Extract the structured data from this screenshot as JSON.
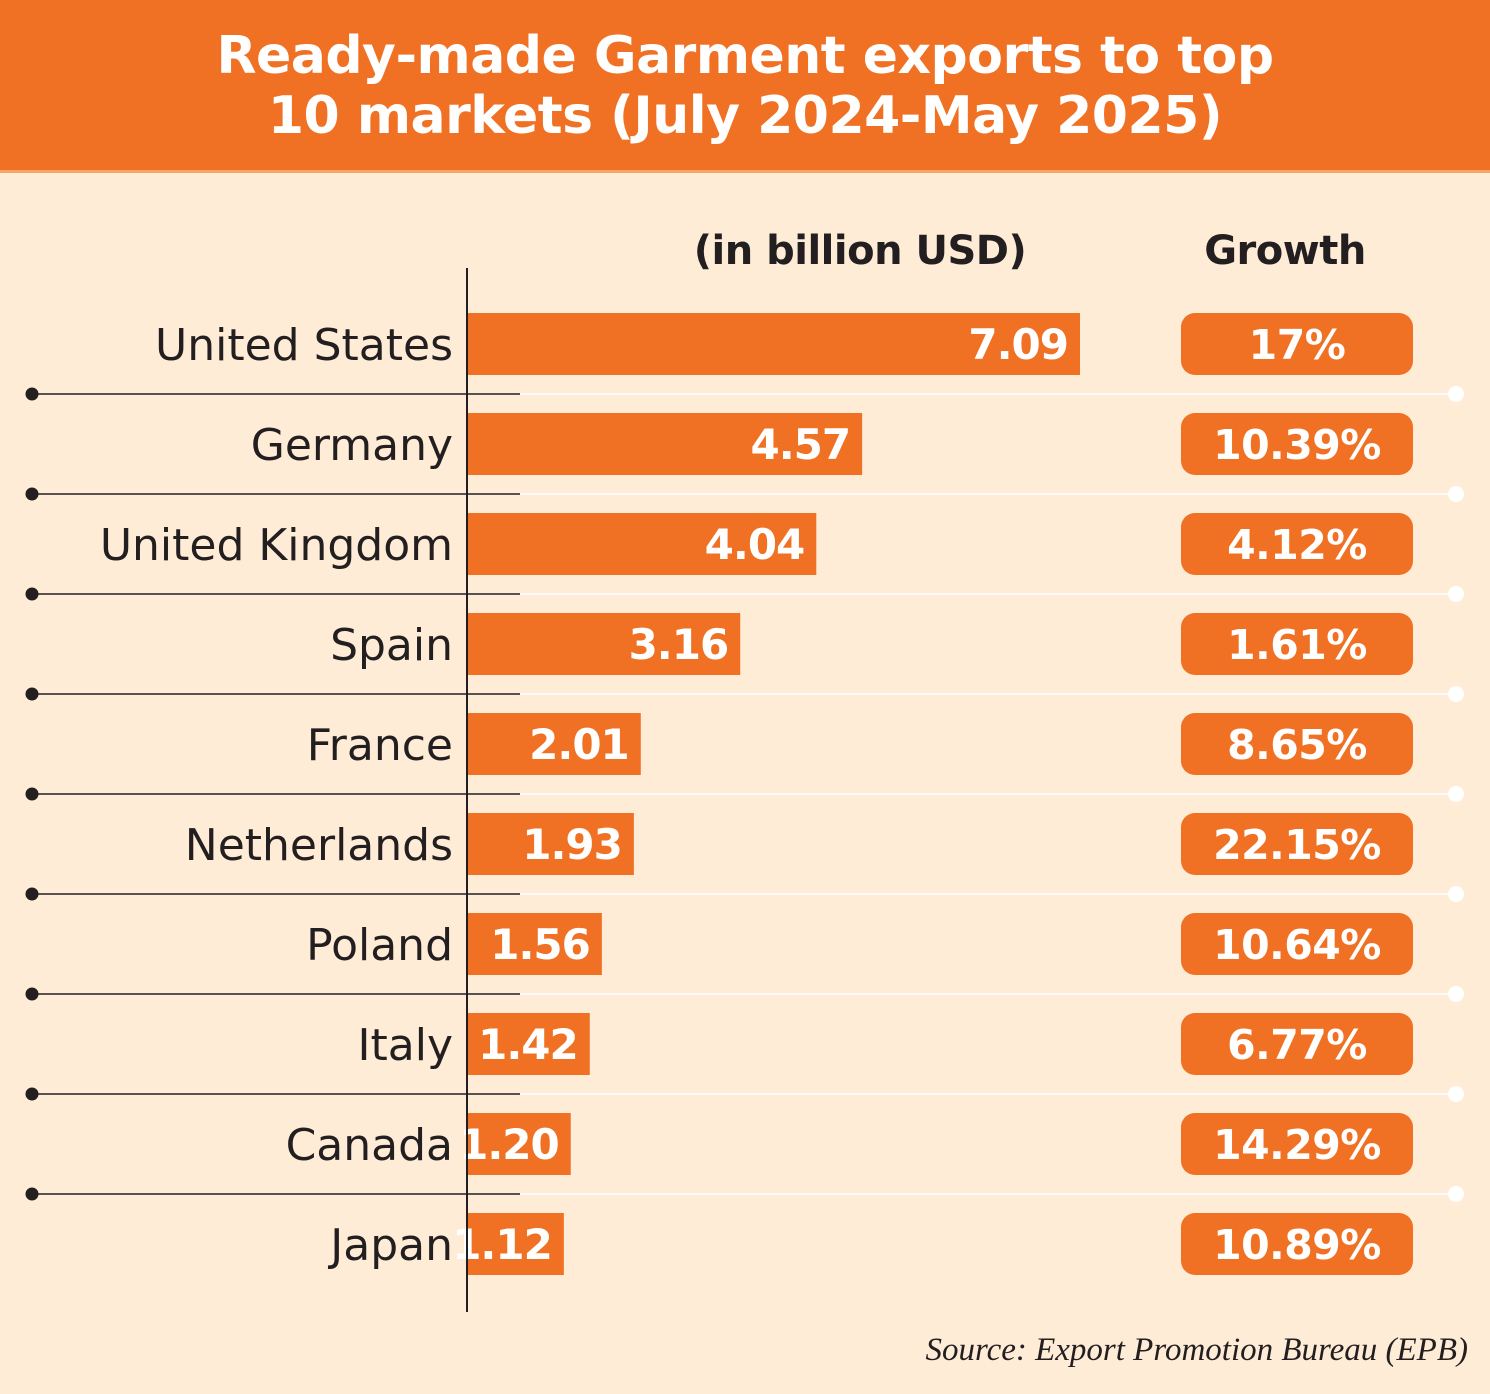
{
  "chart_data": {
    "type": "bar",
    "orientation": "horizontal",
    "title": "Ready-made Garment exports to top 10 markets (July 2024-May 2025)",
    "title_lines": [
      "Ready-made Garment exports to top",
      "10 markets (July 2024-May 2025)"
    ],
    "unit_label": "(in billion USD)",
    "growth_header": "Growth",
    "categories": [
      "United States",
      "Germany",
      "United Kingdom",
      "Spain",
      "France",
      "Netherlands",
      "Poland",
      "Italy",
      "Canada",
      "Japan"
    ],
    "values": [
      7.09,
      4.57,
      4.04,
      3.16,
      2.01,
      1.93,
      1.56,
      1.42,
      1.2,
      1.12
    ],
    "value_labels": [
      "7.09",
      "4.57",
      "4.04",
      "3.16",
      "2.01",
      "1.93",
      "1.56",
      "1.42",
      "1.20",
      "1.12"
    ],
    "growth": [
      "17%",
      "10.39%",
      "4.12%",
      "1.61%",
      "8.65%",
      "22.15%",
      "10.64%",
      "6.77%",
      "14.29%",
      "10.89%"
    ],
    "xlim": [
      0,
      7.09
    ],
    "grid": false,
    "legend": "none",
    "source": "Source: Export Promotion Bureau (EPB)"
  },
  "colors": {
    "accent": "#f07124",
    "background": "#feecd6",
    "text": "#231f20",
    "white": "#ffffff"
  }
}
